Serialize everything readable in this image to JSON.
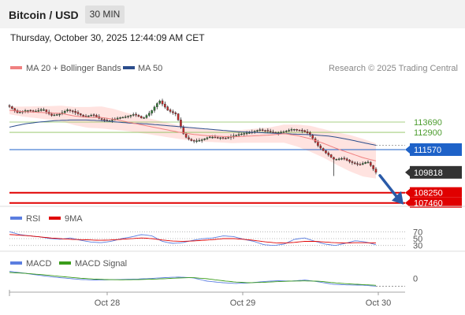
{
  "header": {
    "title": "Bitcoin / USD",
    "interval": "30 MIN"
  },
  "timestamp": "Thursday, October 30, 2025 12:44:09 AM CET",
  "copyright": "Research © 2025 Trading Central",
  "colors": {
    "ma20": "#f08080",
    "ma50": "#2b4d8c",
    "bands": "#ffd0cc",
    "resistance": "#8ec25b",
    "pivot": "#1e62c8",
    "support": "#e00000",
    "current": "#333333",
    "rsi": "#5b7ee0",
    "rsi_ma": "#e00000",
    "macd": "#5b7ee0",
    "macd_signal": "#3a9c1a",
    "arrow": "#2a5aa8"
  },
  "chart_data": [
    {
      "type": "candlestick",
      "legend": [
        {
          "name": "MA 20 + Bollinger Bands",
          "color": "#f08080"
        },
        {
          "name": "MA 50",
          "color": "#2b4d8c"
        }
      ],
      "x_tick_labels": [
        "Oct 28",
        "Oct 29",
        "Oct 30"
      ],
      "ylim": [
        107200,
        117150
      ],
      "levels": [
        {
          "value": 113690,
          "label": "113690",
          "kind": "resistance"
        },
        {
          "value": 112900,
          "label": "112900",
          "kind": "resistance"
        },
        {
          "value": 111570,
          "label": "111570",
          "kind": "pivot"
        },
        {
          "value": 109818,
          "label": "109818",
          "kind": "current"
        },
        {
          "value": 108250,
          "label": "108250",
          "kind": "support"
        },
        {
          "value": 107460,
          "label": "107460",
          "kind": "support"
        }
      ],
      "close_keypoints": [
        114900,
        114400,
        114600,
        114500,
        114700,
        114200,
        114300,
        114650,
        114400,
        114100,
        114250,
        113900,
        113800,
        114000,
        114100,
        114300,
        113950,
        114500,
        115350,
        114600,
        114300,
        112600,
        112200,
        112300,
        112550,
        112500,
        112450,
        112650,
        112800,
        112900,
        113100,
        113000,
        112850,
        112950,
        113150,
        113050,
        112800,
        111900,
        111300,
        110800,
        110900,
        110600,
        110400,
        110650,
        109818
      ],
      "ma20_keypoints": [
        114600,
        114500,
        114450,
        114400,
        114350,
        114150,
        114050,
        114050,
        113900,
        113700,
        113500,
        113300,
        113100,
        112900,
        112750,
        112650,
        112600,
        112550,
        112600,
        112650,
        112700,
        112800,
        112650,
        112400,
        112050,
        111650,
        111300,
        110950,
        110700
      ],
      "ma50_keypoints": [
        113300,
        113550,
        113700,
        113800,
        113850,
        113850,
        113800,
        113700,
        113600,
        113550,
        113450,
        113350,
        113250,
        113150,
        113050,
        112950,
        112900,
        112850,
        112800,
        112750,
        112700,
        112600,
        112400,
        112150,
        111900
      ],
      "band_width_keypoints": [
        300,
        380,
        450,
        520,
        600,
        700,
        800,
        850,
        800,
        700,
        650,
        600,
        560,
        520,
        500,
        480,
        470,
        480,
        500,
        550,
        600,
        700,
        850,
        1000,
        1100,
        1250,
        1400,
        1450,
        1350
      ]
    },
    {
      "type": "line",
      "legend": [
        {
          "name": "RSI",
          "color": "#5b7ee0"
        },
        {
          "name": "9MA",
          "color": "#e00000"
        }
      ],
      "ylim": [
        20,
        80
      ],
      "y_ticks": [
        70,
        50,
        30
      ],
      "rsi_keypoints": [
        70,
        62,
        58,
        55,
        50,
        48,
        52,
        45,
        40,
        38,
        42,
        50,
        55,
        62,
        58,
        42,
        36,
        38,
        45,
        50,
        52,
        58,
        56,
        48,
        42,
        32,
        30,
        34,
        48,
        52,
        42,
        34,
        30,
        36,
        44,
        40,
        32
      ],
      "rsi_ma_keypoints": [
        62,
        60,
        58,
        55,
        52,
        50,
        48,
        47,
        46,
        45,
        46,
        48,
        50,
        52,
        50,
        46,
        43,
        42,
        43,
        45,
        47,
        50,
        50,
        48,
        45,
        41,
        38,
        37,
        39,
        42,
        42,
        40,
        38,
        37,
        38,
        38,
        37
      ]
    },
    {
      "type": "line",
      "legend": [
        {
          "name": "MACD",
          "color": "#5b7ee0"
        },
        {
          "name": "MACD Signal",
          "color": "#3a9c1a"
        }
      ],
      "y_ticks": [
        0
      ],
      "ylim": [
        -800,
        450
      ],
      "macd_keypoints": [
        380,
        290,
        180,
        80,
        10,
        -60,
        -90,
        -80,
        -60,
        -40,
        -10,
        40,
        70,
        30,
        -150,
        -230,
        -280,
        -250,
        -180,
        -130,
        -150,
        -90,
        -200,
        -330,
        -360,
        -370,
        -430
      ],
      "signal_keypoints": [
        320,
        280,
        220,
        150,
        80,
        10,
        -40,
        -70,
        -80,
        -70,
        -50,
        -20,
        20,
        40,
        -20,
        -120,
        -200,
        -240,
        -220,
        -180,
        -150,
        -140,
        -160,
        -240,
        -300,
        -340,
        -380
      ]
    }
  ]
}
